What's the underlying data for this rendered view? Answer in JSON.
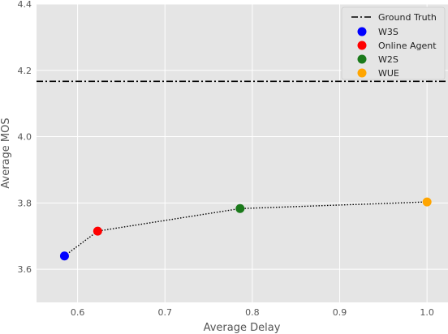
{
  "chart_data": {
    "type": "scatter",
    "title": "",
    "xlabel": "Average Delay",
    "ylabel": "Average MOS",
    "xlim": [
      0.553,
      1.024
    ],
    "ylim": [
      3.5,
      4.4
    ],
    "xticks": [
      {
        "value": 0.6,
        "label": "0.6"
      },
      {
        "value": 0.7,
        "label": "0.7"
      },
      {
        "value": 0.8,
        "label": "0.8"
      },
      {
        "value": 0.9,
        "label": "0.9"
      },
      {
        "value": 1.0,
        "label": "1.0"
      }
    ],
    "yticks": [
      {
        "value": 3.6,
        "label": "3.6"
      },
      {
        "value": 3.8,
        "label": "3.8"
      },
      {
        "value": 4.0,
        "label": "4.0"
      },
      {
        "value": 4.2,
        "label": "4.2"
      },
      {
        "value": 4.4,
        "label": "4.4"
      }
    ],
    "grid": true,
    "legend_position": "top-right",
    "series": [
      {
        "name": "W3S",
        "x": 0.585,
        "y": 3.64,
        "color": "#0000ff"
      },
      {
        "name": "Online Agent",
        "x": 0.623,
        "y": 3.715,
        "color": "#ff0000"
      },
      {
        "name": "W2S",
        "x": 0.786,
        "y": 3.783,
        "color": "#1b7a1b"
      },
      {
        "name": "WUE",
        "x": 1.0,
        "y": 3.803,
        "color": "#ffa500"
      }
    ],
    "connector": {
      "style": "dotted",
      "color": "#000000"
    },
    "reference_line": {
      "name": "Ground Truth",
      "y": 4.167,
      "style": "dash-dot",
      "color": "#000000"
    }
  }
}
